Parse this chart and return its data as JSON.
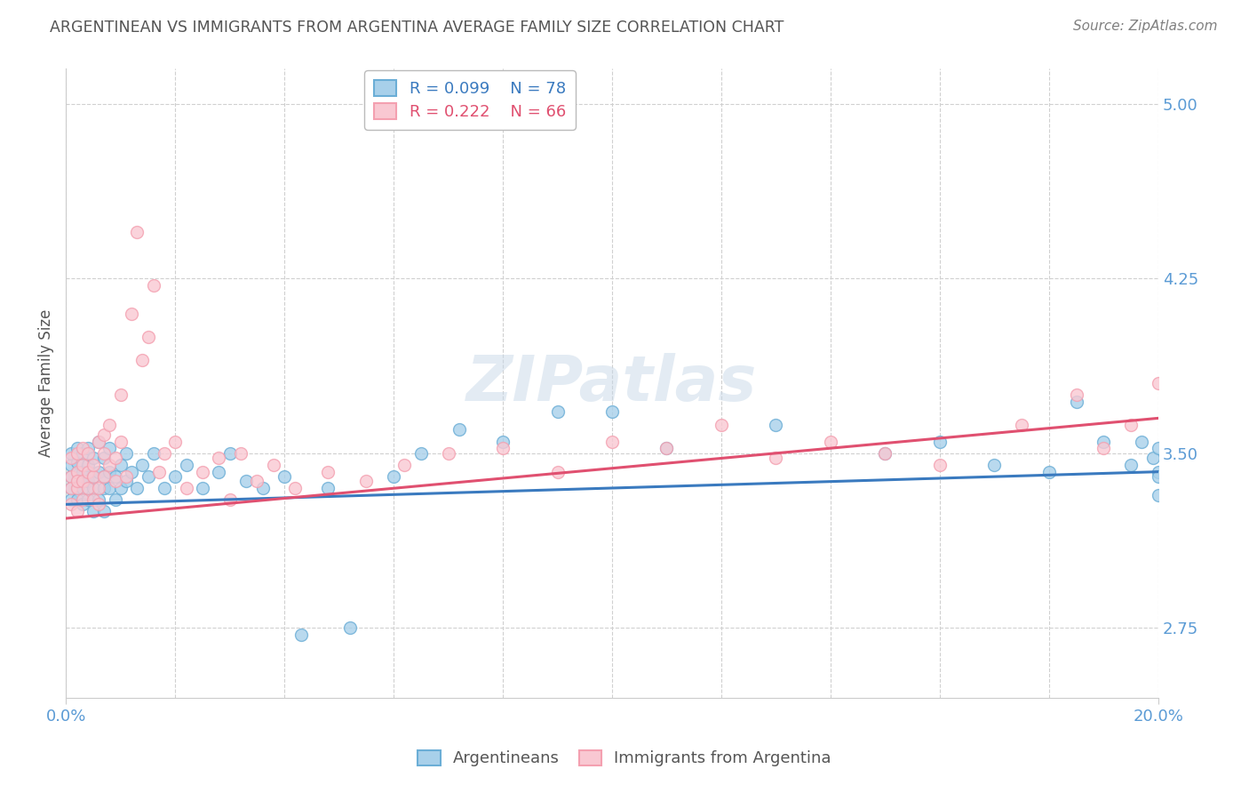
{
  "title": "ARGENTINEAN VS IMMIGRANTS FROM ARGENTINA AVERAGE FAMILY SIZE CORRELATION CHART",
  "source": "Source: ZipAtlas.com",
  "ylabel": "Average Family Size",
  "yticks": [
    2.75,
    3.5,
    4.25,
    5.0
  ],
  "xlim": [
    0.0,
    0.2
  ],
  "ylim": [
    2.45,
    5.15
  ],
  "series": [
    {
      "name": "Argentineans",
      "R": 0.099,
      "N": 78,
      "face_color": "#a8d0ea",
      "edge_color": "#6baed6",
      "line_color": "#3a7abf",
      "points_x": [
        0.001,
        0.001,
        0.001,
        0.001,
        0.001,
        0.002,
        0.002,
        0.002,
        0.002,
        0.002,
        0.002,
        0.003,
        0.003,
        0.003,
        0.003,
        0.003,
        0.004,
        0.004,
        0.004,
        0.004,
        0.005,
        0.005,
        0.005,
        0.005,
        0.006,
        0.006,
        0.006,
        0.007,
        0.007,
        0.007,
        0.007,
        0.008,
        0.008,
        0.008,
        0.009,
        0.009,
        0.01,
        0.01,
        0.011,
        0.011,
        0.012,
        0.013,
        0.014,
        0.015,
        0.016,
        0.018,
        0.02,
        0.022,
        0.025,
        0.028,
        0.03,
        0.033,
        0.036,
        0.04,
        0.043,
        0.048,
        0.052,
        0.06,
        0.065,
        0.072,
        0.08,
        0.09,
        0.1,
        0.11,
        0.13,
        0.15,
        0.16,
        0.17,
        0.18,
        0.185,
        0.19,
        0.195,
        0.197,
        0.199,
        0.2,
        0.2,
        0.2,
        0.2
      ],
      "points_y": [
        3.4,
        3.35,
        3.45,
        3.3,
        3.5,
        3.38,
        3.42,
        3.35,
        3.46,
        3.3,
        3.52,
        3.4,
        3.35,
        3.42,
        3.28,
        3.5,
        3.38,
        3.45,
        3.3,
        3.52,
        3.4,
        3.35,
        3.48,
        3.25,
        3.42,
        3.55,
        3.3,
        3.4,
        3.48,
        3.35,
        3.25,
        3.42,
        3.52,
        3.35,
        3.4,
        3.3,
        3.45,
        3.35,
        3.5,
        3.38,
        3.42,
        3.35,
        3.45,
        3.4,
        3.5,
        3.35,
        3.4,
        3.45,
        3.35,
        3.42,
        3.5,
        3.38,
        3.35,
        3.4,
        2.72,
        3.35,
        2.75,
        3.4,
        3.5,
        3.6,
        3.55,
        3.68,
        3.68,
        3.52,
        3.62,
        3.5,
        3.55,
        3.45,
        3.42,
        3.72,
        3.55,
        3.45,
        3.55,
        3.48,
        3.42,
        3.52,
        3.4,
        3.32
      ],
      "trend_x": [
        0.0,
        0.2
      ],
      "trend_y": [
        3.28,
        3.42
      ]
    },
    {
      "name": "Immigrants from Argentina",
      "R": 0.222,
      "N": 66,
      "face_color": "#f9c8d2",
      "edge_color": "#f4a0b0",
      "line_color": "#e05070",
      "points_x": [
        0.001,
        0.001,
        0.001,
        0.001,
        0.002,
        0.002,
        0.002,
        0.002,
        0.002,
        0.003,
        0.003,
        0.003,
        0.003,
        0.004,
        0.004,
        0.004,
        0.005,
        0.005,
        0.005,
        0.006,
        0.006,
        0.006,
        0.007,
        0.007,
        0.007,
        0.008,
        0.008,
        0.009,
        0.009,
        0.01,
        0.01,
        0.011,
        0.012,
        0.013,
        0.014,
        0.015,
        0.016,
        0.017,
        0.018,
        0.02,
        0.022,
        0.025,
        0.028,
        0.03,
        0.032,
        0.035,
        0.038,
        0.042,
        0.048,
        0.055,
        0.062,
        0.07,
        0.08,
        0.09,
        0.1,
        0.11,
        0.12,
        0.13,
        0.14,
        0.15,
        0.16,
        0.175,
        0.185,
        0.19,
        0.195,
        0.2
      ],
      "points_y": [
        3.4,
        3.35,
        3.48,
        3.28,
        3.42,
        3.5,
        3.35,
        3.38,
        3.25,
        3.45,
        3.38,
        3.3,
        3.52,
        3.42,
        3.35,
        3.5,
        3.4,
        3.3,
        3.45,
        3.55,
        3.35,
        3.28,
        3.5,
        3.4,
        3.58,
        3.45,
        3.62,
        3.38,
        3.48,
        3.75,
        3.55,
        3.4,
        4.1,
        4.45,
        3.9,
        4.0,
        4.22,
        3.42,
        3.5,
        3.55,
        3.35,
        3.42,
        3.48,
        3.3,
        3.5,
        3.38,
        3.45,
        3.35,
        3.42,
        3.38,
        3.45,
        3.5,
        3.52,
        3.42,
        3.55,
        3.52,
        3.62,
        3.48,
        3.55,
        3.5,
        3.45,
        3.62,
        3.75,
        3.52,
        3.62,
        3.8
      ],
      "trend_x": [
        0.0,
        0.2
      ],
      "trend_y": [
        3.22,
        3.65
      ]
    }
  ],
  "background_color": "#ffffff",
  "grid_color": "#d0d0d0",
  "title_color": "#555555",
  "source_color": "#808080",
  "axis_label_color": "#5b9bd5",
  "marker_size": 100
}
